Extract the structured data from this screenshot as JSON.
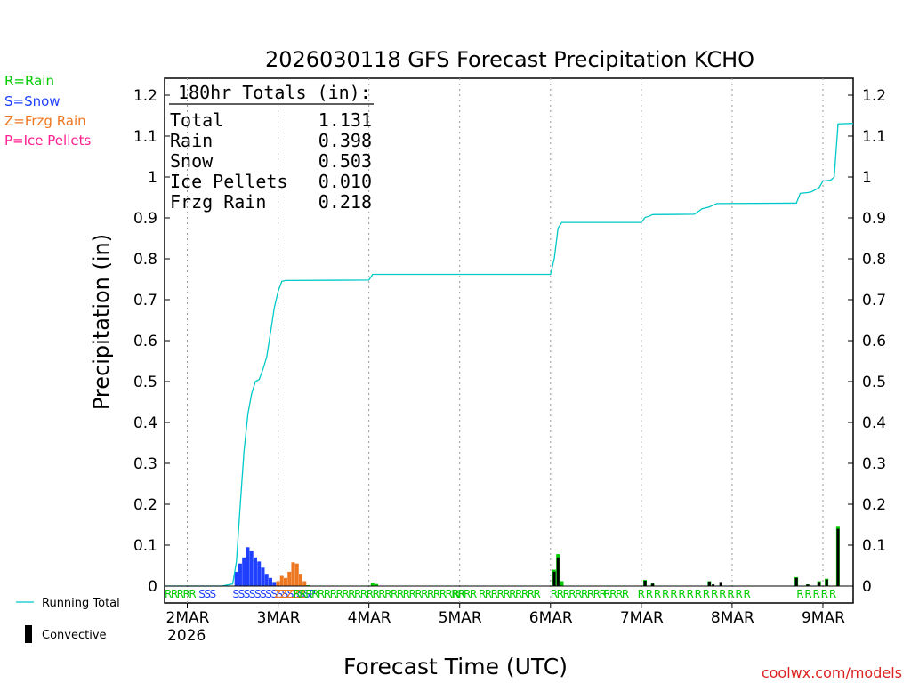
{
  "chart_data": {
    "type": "bar",
    "title": "2026030118 GFS Forecast Precipitation KCHO",
    "xlabel": "Forecast Time (UTC)",
    "ylabel": "Precipitation (in)",
    "ylim": [
      0,
      1.25
    ],
    "xlim_hours": [
      -6,
      176
    ],
    "yticks": [
      "0",
      "0.1",
      "0.2",
      "0.3",
      "0.4",
      "0.5",
      "0.6",
      "0.7",
      "0.8",
      "0.9",
      "1",
      "1.1",
      "1.2"
    ],
    "day_ticks": [
      {
        "label": "2MAR",
        "hour": 0
      },
      {
        "label": "3MAR",
        "hour": 24
      },
      {
        "label": "4MAR",
        "hour": 48
      },
      {
        "label": "5MAR",
        "hour": 72
      },
      {
        "label": "6MAR",
        "hour": 96
      },
      {
        "label": "7MAR",
        "hour": 120
      },
      {
        "label": "8MAR",
        "hour": 144
      },
      {
        "label": "9MAR",
        "hour": 168
      }
    ],
    "year_label": "2026",
    "legend_types": [
      {
        "text": "R=Rain",
        "color": "#00cc00"
      },
      {
        "text": "S=Snow",
        "color": "#2040ff"
      },
      {
        "text": "Z=Frzg Rain",
        "color": "#ee7722"
      },
      {
        "text": "P=Ice Pellets",
        "color": "#ff2090"
      }
    ],
    "legend_lines": [
      {
        "text": "Running Total",
        "color": "#00c8c8"
      },
      {
        "text": "Convective",
        "color": "#000000"
      }
    ],
    "totals": {
      "header": "180hr Totals (in):",
      "rows": [
        {
          "label": "Total",
          "value": "1.131"
        },
        {
          "label": "Rain",
          "value": "0.398"
        },
        {
          "label": "Snow",
          "value": "0.503"
        },
        {
          "label": "Ice Pellets",
          "value": "0.010"
        },
        {
          "label": "Frzg Rain",
          "value": "0.218"
        }
      ]
    },
    "running_total": [
      [
        -6,
        0
      ],
      [
        9,
        0
      ],
      [
        12,
        0.005
      ],
      [
        13,
        0.06
      ],
      [
        14,
        0.2
      ],
      [
        15,
        0.33
      ],
      [
        16,
        0.42
      ],
      [
        17,
        0.47
      ],
      [
        18,
        0.5
      ],
      [
        19,
        0.505
      ],
      [
        20,
        0.53
      ],
      [
        21,
        0.56
      ],
      [
        22,
        0.62
      ],
      [
        23,
        0.68
      ],
      [
        24,
        0.72
      ],
      [
        25,
        0.745
      ],
      [
        26,
        0.747
      ],
      [
        48,
        0.748
      ],
      [
        49,
        0.762
      ],
      [
        96,
        0.762
      ],
      [
        97,
        0.8
      ],
      [
        98,
        0.875
      ],
      [
        99,
        0.889
      ],
      [
        120,
        0.889
      ],
      [
        121,
        0.901
      ],
      [
        122,
        0.904
      ],
      [
        123,
        0.908
      ],
      [
        134,
        0.909
      ],
      [
        135,
        0.915
      ],
      [
        136,
        0.922
      ],
      [
        138,
        0.927
      ],
      [
        140,
        0.935
      ],
      [
        161,
        0.936
      ],
      [
        162,
        0.96
      ],
      [
        164,
        0.962
      ],
      [
        165,
        0.964
      ],
      [
        167,
        0.974
      ],
      [
        168,
        0.99
      ],
      [
        170,
        0.992
      ],
      [
        171,
        1.0
      ],
      [
        172,
        1.13
      ],
      [
        176,
        1.131
      ]
    ],
    "series": [
      {
        "name": "Snow",
        "color": "#2040ff",
        "points": [
          [
            13,
            0.035
          ],
          [
            14,
            0.055
          ],
          [
            15,
            0.07
          ],
          [
            16,
            0.095
          ],
          [
            17,
            0.085
          ],
          [
            18,
            0.07
          ],
          [
            19,
            0.06
          ],
          [
            20,
            0.045
          ],
          [
            21,
            0.03
          ],
          [
            22,
            0.02
          ],
          [
            23,
            0.01
          ]
        ]
      },
      {
        "name": "Frzg Rain",
        "color": "#ee7722",
        "points": [
          [
            24,
            0.012
          ],
          [
            25,
            0.025
          ],
          [
            26,
            0.02
          ],
          [
            27,
            0.035
          ],
          [
            28,
            0.058
          ],
          [
            29,
            0.055
          ],
          [
            30,
            0.03
          ],
          [
            31,
            0.012
          ]
        ]
      },
      {
        "name": "Rain",
        "color": "#00cc00",
        "points": [
          [
            32,
            0.002
          ],
          [
            49,
            0.008
          ],
          [
            50,
            0.005
          ],
          [
            97,
            0.04
          ],
          [
            98,
            0.078
          ],
          [
            99,
            0.012
          ],
          [
            121,
            0.015
          ],
          [
            123,
            0.006
          ],
          [
            138,
            0.012
          ],
          [
            161,
            0.022
          ],
          [
            164,
            0.004
          ],
          [
            167,
            0.012
          ],
          [
            169,
            0.018
          ],
          [
            172,
            0.145
          ]
        ]
      }
    ],
    "convective": [
      [
        97,
        0.035
      ],
      [
        98,
        0.07
      ],
      [
        121,
        0.013
      ],
      [
        123,
        0.006
      ],
      [
        138,
        0.011
      ],
      [
        139,
        0.004
      ],
      [
        141,
        0.01
      ],
      [
        161,
        0.02
      ],
      [
        164,
        0.004
      ],
      [
        167,
        0.01
      ],
      [
        169,
        0.016
      ],
      [
        172,
        0.14
      ]
    ],
    "ptype_row": [
      {
        "text": "RRRRR",
        "color": "#00cc00",
        "hour": -6
      },
      {
        "text": "SSS",
        "color": "#2040ff",
        "hour": 3
      },
      {
        "text": "SSSSSSSSSSSSSSP",
        "color": "#2040ff",
        "hour": 12
      },
      {
        "text": "ZZZZZ",
        "color": "#ee7722",
        "hour": 23
      },
      {
        "text": "RRRRRRRRRRRRRRRRRRRRRRRRRRRRRR",
        "color": "#00cc00",
        "hour": 28
      },
      {
        "text": "RR",
        "color": "#00cc00",
        "hour": 70
      },
      {
        "text": "RRRRRRRRRR",
        "color": "#00cc00",
        "hour": 77
      },
      {
        "text": "RRRRRRRRR",
        "color": "#00cc00",
        "hour": 96
      },
      {
        "text": "RRRR",
        "color": "#00cc00",
        "hour": 110
      },
      {
        "text": "R R R R R R R R R R R R R R",
        "color": "#00cc00",
        "hour": 119
      },
      {
        "text": "R R R R R",
        "color": "#00cc00",
        "hour": 161
      }
    ]
  },
  "credit": "coolwx.com/models"
}
